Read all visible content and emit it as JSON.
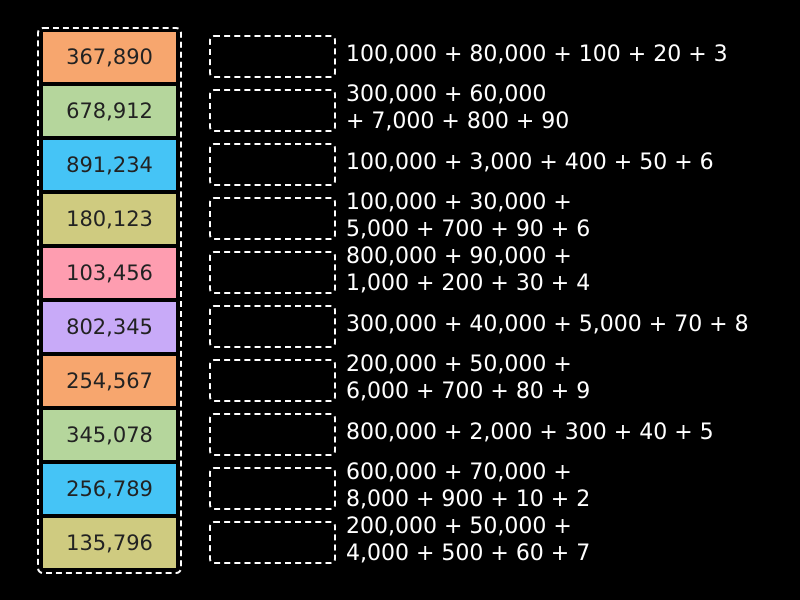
{
  "tiles": [
    {
      "label": "367,890",
      "color": "#f7a66e"
    },
    {
      "label": "678,912",
      "color": "#b5d69c"
    },
    {
      "label": "891,234",
      "color": "#45c4f6"
    },
    {
      "label": "180,123",
      "color": "#cfcb80"
    },
    {
      "label": "103,456",
      "color": "#fe9db0"
    },
    {
      "label": "802,345",
      "color": "#c8aaf8"
    },
    {
      "label": "254,567",
      "color": "#f7a66e"
    },
    {
      "label": "345,078",
      "color": "#b5d69c"
    },
    {
      "label": "256,789",
      "color": "#45c4f6"
    },
    {
      "label": "135,796",
      "color": "#cfcb80"
    }
  ],
  "clues": [
    [
      "100,000 + 80,000 + 100 + 20 + 3"
    ],
    [
      "300,000 + 60,000",
      "+ 7,000 + 800 + 90"
    ],
    [
      "100,000 + 3,000 + 400 + 50 + 6"
    ],
    [
      "100,000 + 30,000 +",
      "5,000 + 700 + 90 + 6"
    ],
    [
      "800,000 + 90,000 +",
      "1,000 + 200 + 30 + 4"
    ],
    [
      "300,000 + 40,000 + 5,000 + 70 + 8"
    ],
    [
      "200,000 + 50,000 +",
      "6,000 + 700 + 80 + 9"
    ],
    [
      "800,000 + 2,000 + 300 + 40 + 5"
    ],
    [
      "600,000 + 70,000 +",
      "8,000 + 900 + 10 + 2"
    ],
    [
      "200,000 + 50,000 +",
      "4,000 + 500 + 60 + 7"
    ]
  ]
}
